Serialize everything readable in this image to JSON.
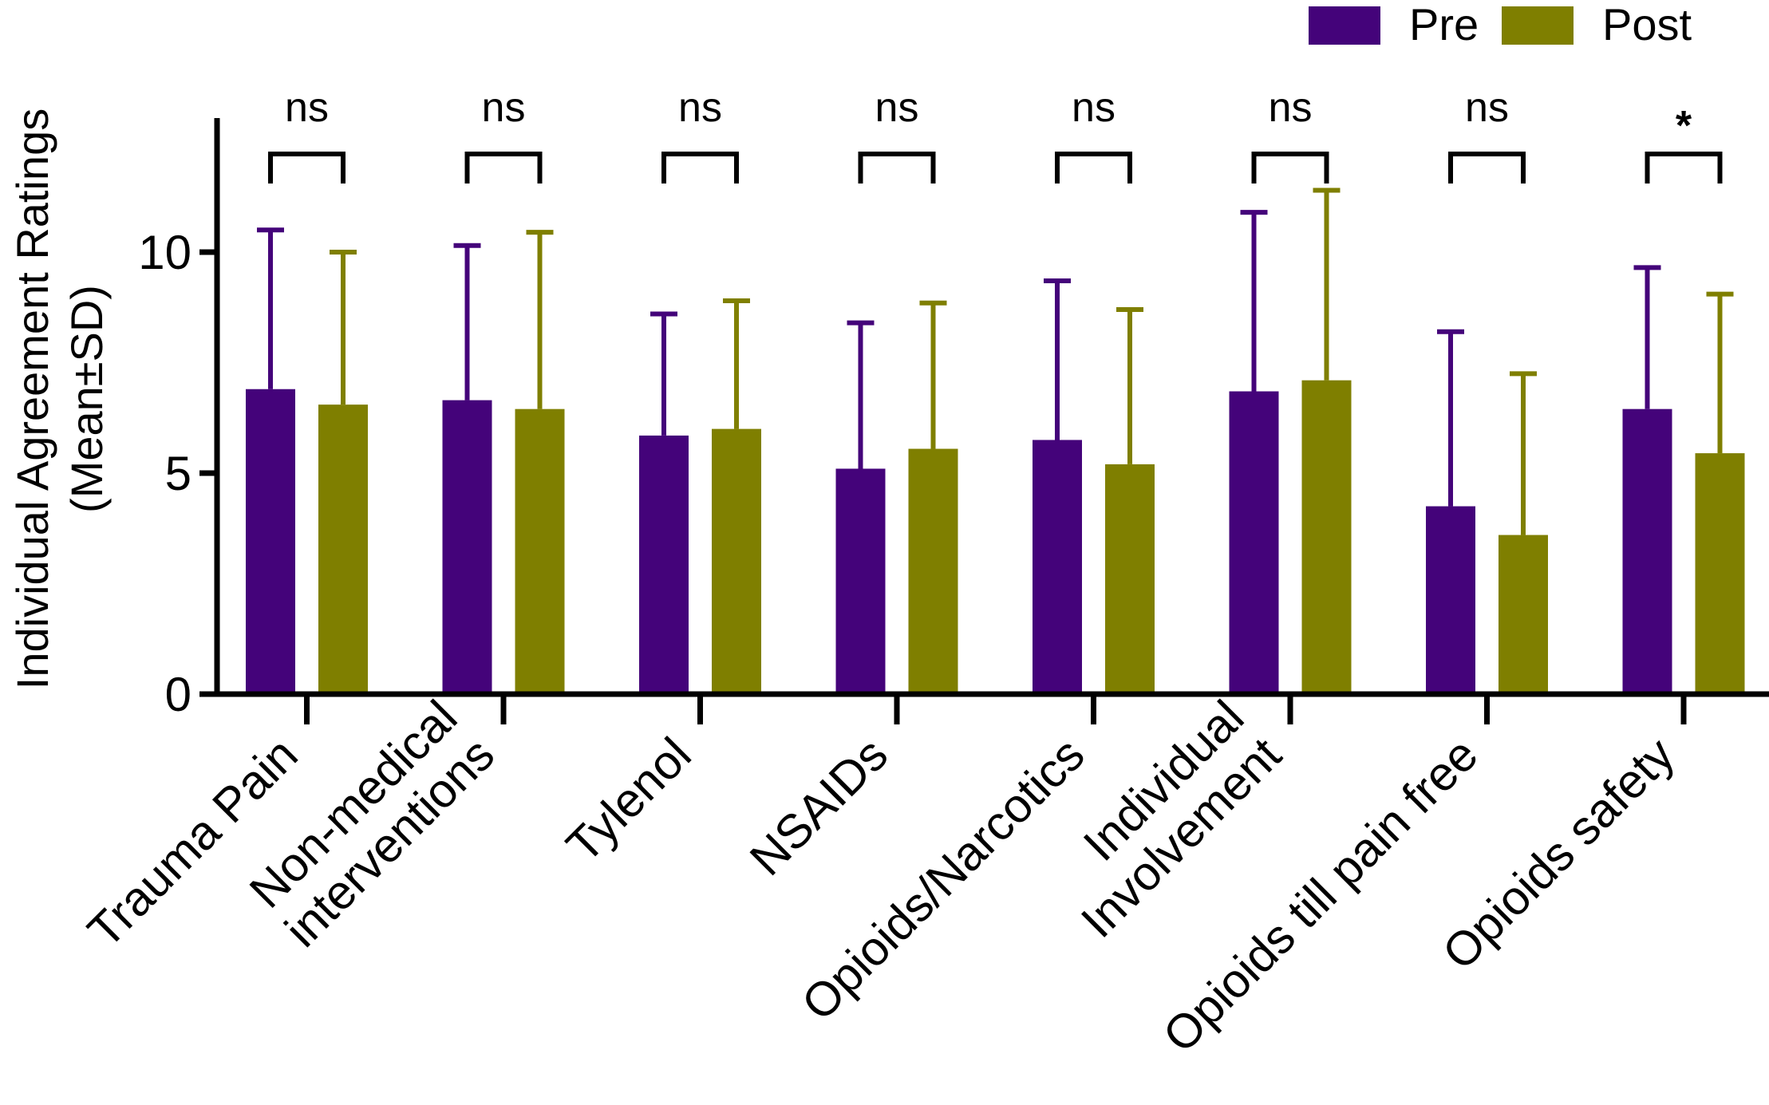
{
  "chart_data": {
    "type": "bar",
    "title": "",
    "xlabel": "",
    "ylabel": [
      "Individual Agreement Ratings",
      "(Mean±SD)"
    ],
    "ylim": [
      0,
      13
    ],
    "yticks": [
      0,
      5,
      10
    ],
    "categories": [
      [
        "Trauma Pain"
      ],
      [
        "Non-medical",
        "interventions"
      ],
      [
        "Tylenol"
      ],
      [
        "NSAIDs"
      ],
      [
        "Opioids/Narcotics"
      ],
      [
        "Individual",
        "Involvement"
      ],
      [
        "Opioids till pain free"
      ],
      [
        "Opioids safety"
      ]
    ],
    "series": [
      {
        "name": "Pre",
        "color": "#44037a",
        "values": [
          6.9,
          6.65,
          5.85,
          5.1,
          5.75,
          6.85,
          4.25,
          6.45
        ],
        "sd": [
          3.6,
          3.5,
          2.75,
          3.3,
          3.6,
          4.05,
          3.95,
          3.2
        ]
      },
      {
        "name": "Post",
        "color": "#7f7f00",
        "values": [
          6.55,
          6.45,
          6.0,
          5.55,
          5.2,
          7.1,
          3.6,
          5.45
        ],
        "sd": [
          3.45,
          4.0,
          2.9,
          3.3,
          3.5,
          4.3,
          3.65,
          3.6
        ]
      }
    ],
    "significance": [
      "ns",
      "ns",
      "ns",
      "ns",
      "ns",
      "ns",
      "ns",
      "*"
    ],
    "legend": {
      "position": "top-right",
      "entries": [
        "Pre",
        "Post"
      ]
    }
  }
}
